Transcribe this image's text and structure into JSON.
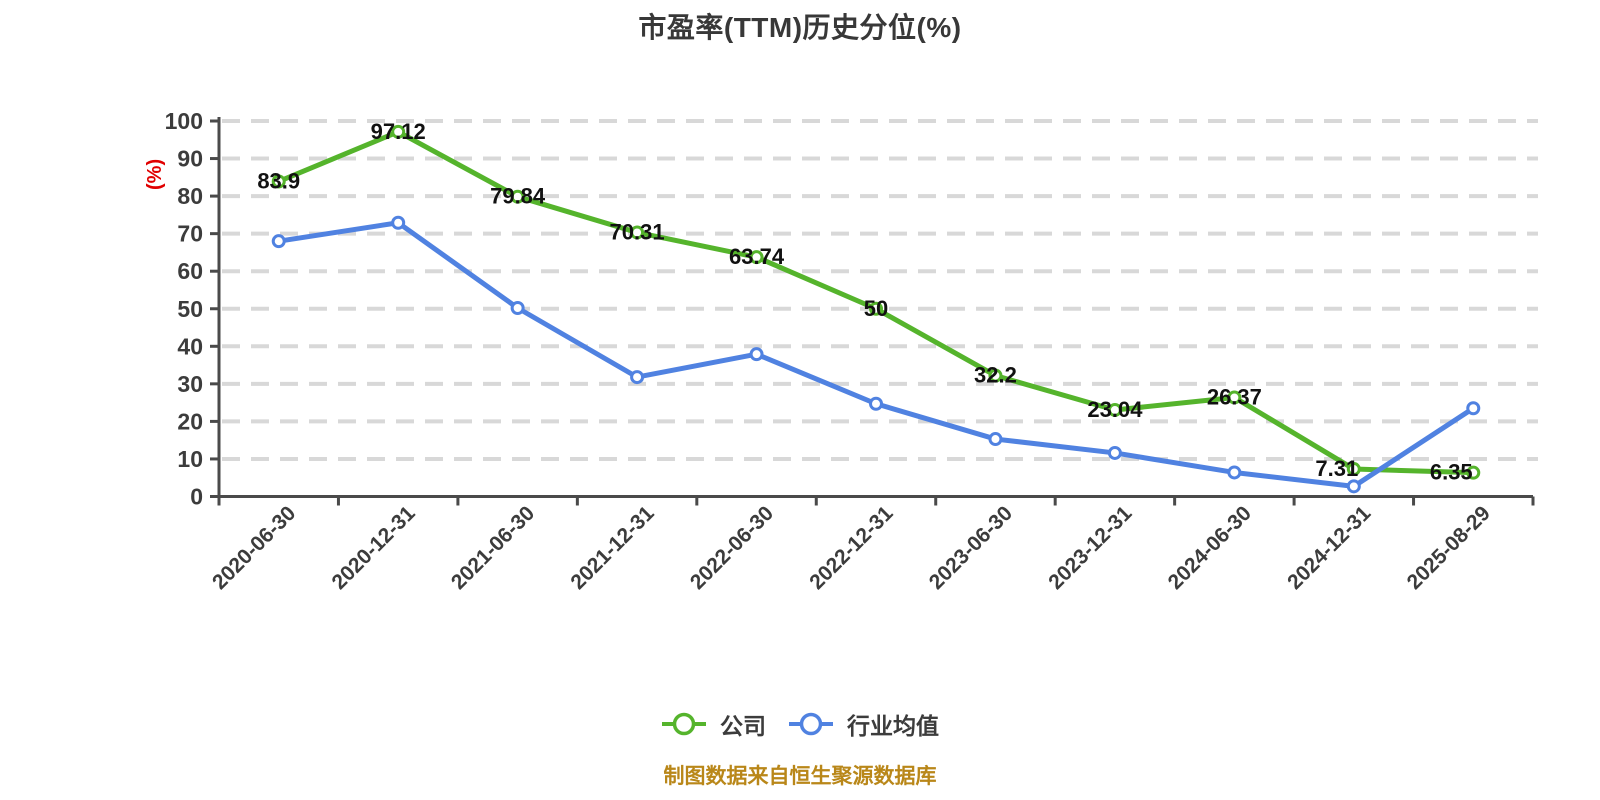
{
  "page": {
    "background": "#ffffff"
  },
  "footer": {
    "text": "制图数据来自恒生聚源数据库",
    "color": "#b98719"
  },
  "chart_data": {
    "type": "line",
    "title": "市盈率(TTM)历史分位(%)",
    "ylabel": "(%)",
    "ylabel_color": "#e00000",
    "ylim": [
      0,
      100
    ],
    "y_ticks": [
      0,
      10,
      20,
      30,
      40,
      50,
      60,
      70,
      80,
      90,
      100
    ],
    "categories": [
      "2020-06-30",
      "2020-12-31",
      "2021-06-30",
      "2021-12-31",
      "2022-06-30",
      "2022-12-31",
      "2023-06-30",
      "2023-12-31",
      "2024-06-30",
      "2024-12-31",
      "2025-08-29"
    ],
    "series": [
      {
        "name": "公司",
        "color": "#55b42c",
        "values": [
          83.9,
          97.12,
          79.84,
          70.31,
          63.74,
          50,
          32.2,
          23.04,
          26.37,
          7.31,
          6.35
        ],
        "labels": [
          "83.9",
          "97.12",
          "79.84",
          "70.31",
          "63.74",
          "50",
          "32.2",
          "23.04",
          "26.37",
          "7.31",
          "6.35"
        ],
        "show_labels": true
      },
      {
        "name": "行业均值",
        "color": "#5082e1",
        "values": [
          68,
          72.9,
          50.2,
          31.8,
          37.9,
          24.7,
          15.3,
          11.6,
          6.4,
          2.7,
          23.5
        ],
        "labels": [],
        "show_labels": false
      }
    ],
    "grid": {
      "visible": true,
      "style": "dashed",
      "color": "#d8d8d8"
    },
    "axis_color": "#4a4a4a",
    "tick_label_color": "#3c3c3c",
    "data_label_color": "#111111",
    "legend_position": "bottom",
    "marker": "circle-white-fill"
  }
}
